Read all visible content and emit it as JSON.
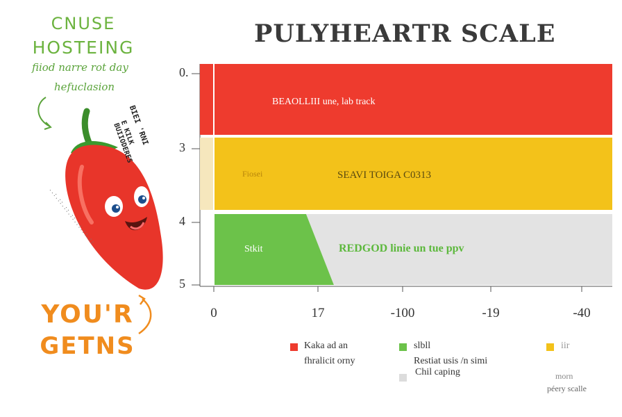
{
  "left_panel": {
    "title_line1": "CNUSE",
    "title_line2": "HOSTEING",
    "handwritten_line1": "fiiod narre rot day",
    "handwritten_line2": "hefuclasion",
    "side_note_line1": "BIEI 'RNI",
    "side_note_line2": "E KILK BUIIODERES",
    "side_dotted_text": "..:.::.::.::.::.::.::",
    "slogan_line1": "YOU'R",
    "slogan_line2": "GETNS",
    "mascot_icon": "chili-pepper-mascot-icon",
    "colors": {
      "green": "#6cb33f",
      "orange": "#f08c1e",
      "pepper_red": "#e8352a"
    }
  },
  "chart_data": {
    "type": "bar",
    "title": "PULYHEARTR SCALE",
    "y_tick_labels": [
      "0.",
      "3",
      "4",
      "5"
    ],
    "x_tick_labels": [
      "0",
      "17",
      "-100",
      "-19",
      "-40"
    ],
    "bars": [
      {
        "label": "BEAOLLIII  une, lab track",
        "stub_label": "",
        "fill_fraction": 1.0,
        "color": "#ee3b2e",
        "stub_color": "#ee3b2e"
      },
      {
        "label": "SEAVI TOIGA C0313",
        "stub_label": "Fiosei",
        "fill_fraction": 1.0,
        "color": "#f3c21a",
        "stub_color": "#f6e7bd"
      },
      {
        "label": "REDGOD linie un tue ppv",
        "stub_label": "Stkit",
        "fill_fraction": 0.3,
        "color": "#6cc24a",
        "rest_color": "#e3e3e3"
      }
    ],
    "legend": [
      {
        "color": "#ee3b2e",
        "line1": "Kaka ad an",
        "line2": "fhralicit orny"
      },
      {
        "color": "#6cc24a",
        "line1": "slbll",
        "line2": "Restiat usis /n simi"
      },
      {
        "color": "#dcdcdc",
        "line1": "Chil caping",
        "line2": ""
      },
      {
        "color": "#f3c21a",
        "line1": "iir",
        "line2": ""
      }
    ],
    "footnote_line1": "morn",
    "footnote_line2": "péery scalle",
    "grid": false
  }
}
